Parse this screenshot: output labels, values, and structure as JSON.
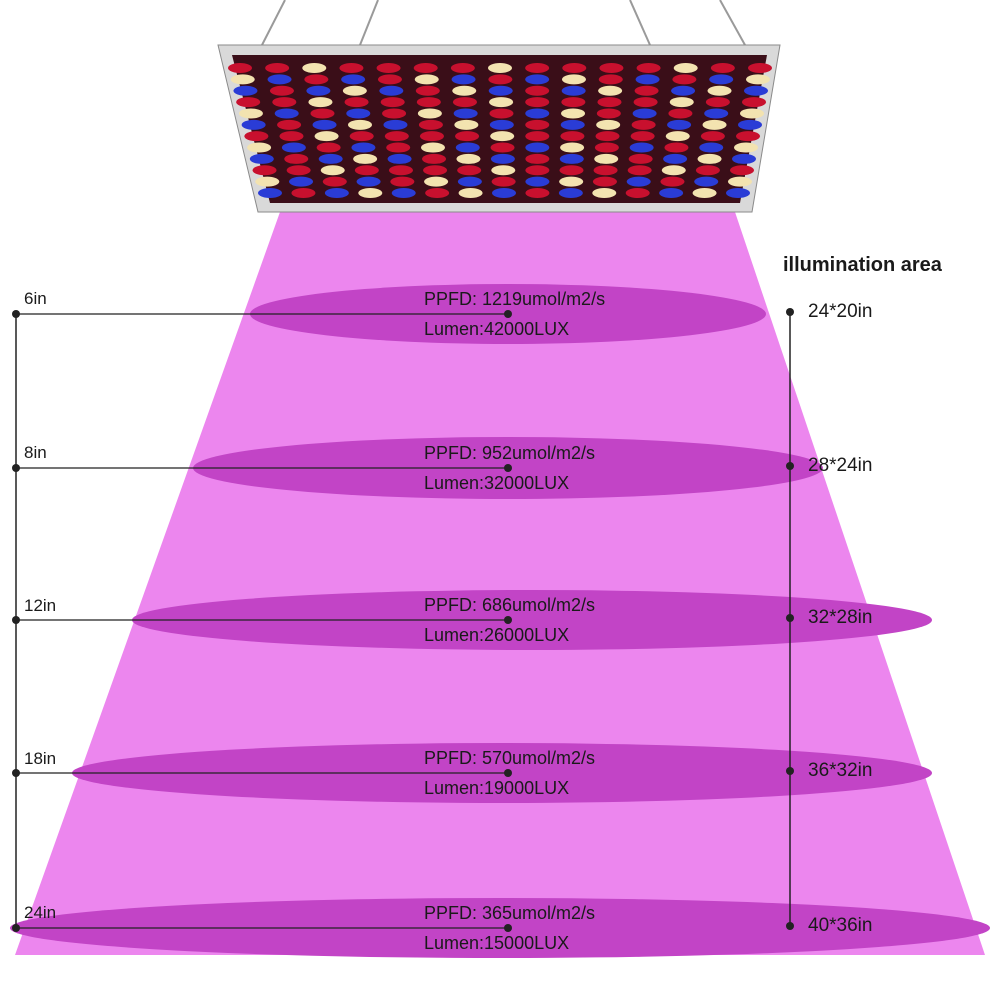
{
  "illumination_header": "illumination area",
  "levels": [
    {
      "distance": "6in",
      "ppfd": "PPFD: 1219umol/m2/s",
      "lumen": "Lumen:42000LUX",
      "area": "24*20in"
    },
    {
      "distance": "8in",
      "ppfd": "PPFD: 952umol/m2/s",
      "lumen": "Lumen:32000LUX",
      "area": "28*24in"
    },
    {
      "distance": "12in",
      "ppfd": "PPFD: 686umol/m2/s",
      "lumen": "Lumen:26000LUX",
      "area": "32*28in"
    },
    {
      "distance": "18in",
      "ppfd": "PPFD: 570umol/m2/s",
      "lumen": "Lumen:19000LUX",
      "area": "36*32in"
    },
    {
      "distance": "24in",
      "ppfd": "PPFD: 365umol/m2/s",
      "lumen": "Lumen:15000LUX",
      "area": "40*36in"
    }
  ],
  "colors": {
    "beam": "#ec86ee",
    "ellipse": "#c244c6",
    "panel_frame": "#d9d9d9",
    "led_red": "#c8102e",
    "led_blue": "#2a3cd6",
    "led_white": "#f3e3b0",
    "line": "#222222"
  }
}
